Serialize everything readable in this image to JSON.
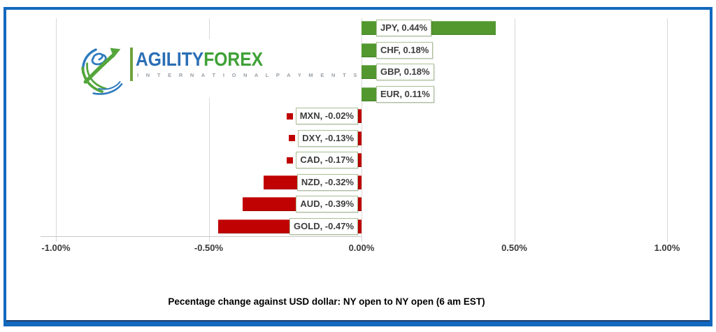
{
  "frame": {
    "border_color": "#1269be",
    "bottom_accent_color": "#1b3c6d"
  },
  "logo": {
    "icon": "globe-swoosh-arrow-icon",
    "brand_part1": "AGILITY",
    "brand_part2": "FOREX",
    "brand_part1_color": "#2b6fb5",
    "brand_part2_color": "#3fa136",
    "subtitle": "I N T E R N A T I O N A L   P A Y M E N T S",
    "icon_blue": "#2e7bbe",
    "icon_green": "#54a63c"
  },
  "chart_data": {
    "type": "bar",
    "orientation": "horizontal",
    "title": "Pecentage change against USD dollar:  NY open to NY open  (6 am EST)",
    "categories": [
      "JPY",
      "CHF",
      "GBP",
      "EUR",
      "MXN",
      "DXY",
      "CAD",
      "NZD",
      "AUD",
      "GOLD"
    ],
    "values": [
      0.44,
      0.18,
      0.18,
      0.11,
      -0.02,
      -0.13,
      -0.17,
      -0.32,
      -0.39,
      -0.47
    ],
    "labels": [
      "JPY, 0.44%",
      "CHF, 0.18%",
      "GBP, 0.18%",
      "EUR, 0.11%",
      "MXN, -0.02%",
      "DXY, -0.13%",
      "CAD, -0.17%",
      "NZD, -0.32%",
      "AUD, -0.39%",
      "GOLD, -0.47%"
    ],
    "positive_color": "#52982f",
    "negative_color": "#c00202",
    "label_border_color": "#a9bf94",
    "label_text_color": "#3d3d3d",
    "gridline_color": "#d9d9d9",
    "x_ticks": [
      "-1.00%",
      "-0.50%",
      "0.00%",
      "0.50%",
      "1.00%"
    ],
    "x_tick_values": [
      -1.0,
      -0.5,
      0.0,
      0.5,
      1.0
    ],
    "xlim": [
      -1.05,
      1.0
    ],
    "grid": true,
    "legend": "none",
    "data_labels": "shown with legend key, boxed near axis"
  }
}
